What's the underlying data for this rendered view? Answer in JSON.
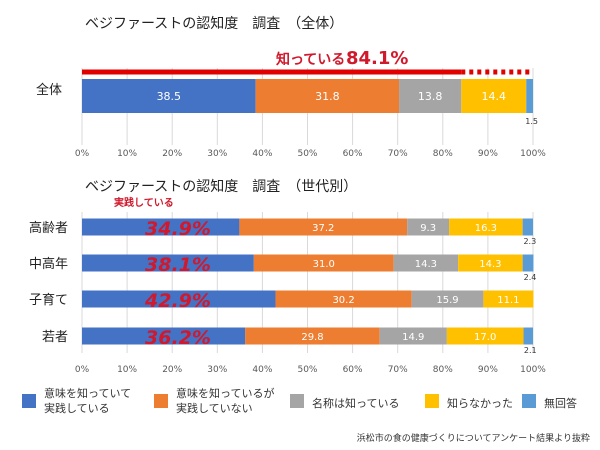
{
  "colors": {
    "blue": "#4472C4",
    "orange": "#ED7D31",
    "gray": "#A5A5A5",
    "yellow": "#FFC000",
    "lightblue": "#5B9BD5",
    "red": "#E00000",
    "highlight": "#D0192C",
    "grid": "#D9D9D9",
    "axis_text": "#595959"
  },
  "chart_data": [
    {
      "type": "bar",
      "orientation": "horizontal",
      "stacked": true,
      "title": "ベジファーストの認知度　調査　（全体）",
      "categories": [
        "全体"
      ],
      "series": [
        {
          "name": "意味を知っていて実践している",
          "values": [
            38.5
          ]
        },
        {
          "name": "意味を知っているが実践していない",
          "values": [
            31.8
          ]
        },
        {
          "name": "名称は知っている",
          "values": [
            13.8
          ]
        },
        {
          "name": "知らなかった",
          "values": [
            14.4
          ]
        },
        {
          "name": "無回答",
          "values": [
            1.5
          ]
        }
      ],
      "xlim": [
        0,
        100
      ],
      "x_ticks": [
        "0%",
        "10%",
        "20%",
        "30%",
        "40%",
        "50%",
        "60%",
        "70%",
        "80%",
        "90%",
        "100%"
      ],
      "grid": true,
      "annotation": {
        "label": "知っている",
        "value": "84.1%",
        "fraction": 0.841
      }
    },
    {
      "type": "bar",
      "orientation": "horizontal",
      "stacked": true,
      "title": "ベジファーストの認知度　調査　（世代別）",
      "categories": [
        "高齢者",
        "中高年",
        "子育て",
        "若者"
      ],
      "series": [
        {
          "name": "意味を知っていて実践している",
          "values": [
            34.9,
            38.1,
            42.9,
            36.2
          ]
        },
        {
          "name": "意味を知っているが実践していない",
          "values": [
            37.2,
            31.0,
            30.2,
            29.8
          ]
        },
        {
          "name": "名称は知っている",
          "values": [
            9.3,
            14.3,
            15.9,
            14.9
          ]
        },
        {
          "name": "知らなかった",
          "values": [
            16.3,
            14.3,
            11.1,
            17.0
          ]
        },
        {
          "name": "無回答",
          "values": [
            2.3,
            2.4,
            0.0,
            2.1
          ]
        }
      ],
      "xlim": [
        0,
        100
      ],
      "x_ticks": [
        "0%",
        "10%",
        "20%",
        "30%",
        "40%",
        "50%",
        "60%",
        "70%",
        "80%",
        "90%",
        "100%"
      ],
      "grid": true,
      "highlight_label": "実践している",
      "highlight_values": [
        "34.9%",
        "38.1%",
        "42.9%",
        "36.2%"
      ],
      "segment_labels": [
        [
          "",
          "37.2",
          "9.3",
          "16.3",
          "2.3"
        ],
        [
          "",
          "31.0",
          "14.3",
          "14.3",
          "2.4"
        ],
        [
          "",
          "30.2",
          "15.9",
          "11.1",
          ""
        ],
        [
          "",
          "29.8",
          "14.9",
          "17.0",
          "2.1"
        ]
      ]
    }
  ],
  "legend": {
    "placement": "bottom",
    "items": [
      {
        "label": "意味を知っていて\n実践している",
        "color_key": "blue"
      },
      {
        "label": "意味を知っているが\n実践していない",
        "color_key": "orange"
      },
      {
        "label": "名称は知っている",
        "color_key": "gray"
      },
      {
        "label": "知らなかった",
        "color_key": "yellow"
      },
      {
        "label": "無回答",
        "color_key": "lightblue"
      }
    ]
  },
  "chart1_segment_labels": [
    "38.5",
    "31.8",
    "13.8",
    "14.4",
    "1.5"
  ],
  "source_note": "浜松市の食の健康づくりについてアンケート結果より抜粋"
}
